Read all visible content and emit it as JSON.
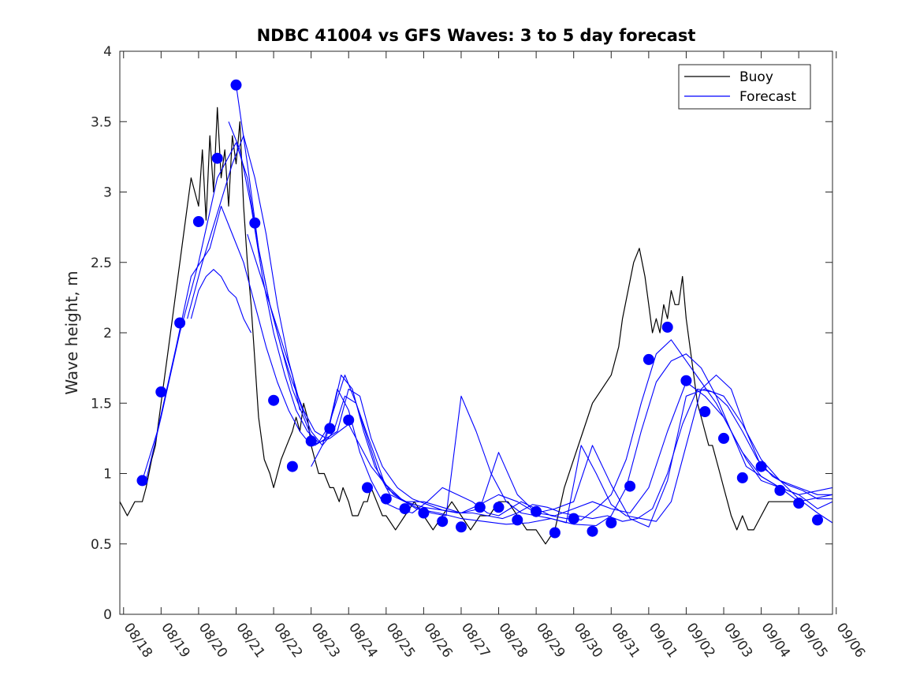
{
  "chart_data": {
    "type": "line",
    "title": "NDBC 41004 vs GFS Waves: 3 to 5 day forecast",
    "xlabel": "",
    "ylabel": "Wave height, m",
    "xlim": [
      -0.1,
      18.9
    ],
    "ylim": [
      0,
      4
    ],
    "x_tick_labels": [
      "08/18",
      "08/19",
      "08/20",
      "08/21",
      "08/22",
      "08/23",
      "08/24",
      "08/25",
      "08/26",
      "08/27",
      "08/28",
      "08/29",
      "08/30",
      "08/31",
      "09/01",
      "09/02",
      "09/03",
      "09/04",
      "09/05",
      "09/06"
    ],
    "y_ticks": [
      0,
      0.5,
      1,
      1.5,
      2,
      2.5,
      3,
      3.5,
      4
    ],
    "y_tick_labels": [
      "0",
      "0.5",
      "1",
      "1.5",
      "2",
      "2.5",
      "3",
      "3.5",
      "4"
    ],
    "legend": {
      "position": "top-right",
      "entries": [
        {
          "label": "Buoy",
          "color": "#000000"
        },
        {
          "label": "Forecast",
          "color": "#0000ff"
        }
      ]
    },
    "colors": {
      "buoy": "#000000",
      "forecast": "#0000ff",
      "markers": "#0000ff"
    },
    "series": [
      {
        "name": "Buoy",
        "color": "#000000",
        "x": [
          -0.1,
          0.1,
          0.3,
          0.5,
          0.6,
          0.75,
          0.85,
          1.0,
          1.2,
          1.4,
          1.6,
          1.8,
          2.0,
          2.1,
          2.2,
          2.3,
          2.4,
          2.5,
          2.6,
          2.7,
          2.8,
          2.9,
          3.0,
          3.1,
          3.2,
          3.3,
          3.4,
          3.5,
          3.6,
          3.75,
          3.9,
          4.0,
          4.1,
          4.2,
          4.35,
          4.5,
          4.6,
          4.7,
          4.8,
          4.9,
          5.0,
          5.1,
          5.2,
          5.35,
          5.5,
          5.6,
          5.75,
          5.85,
          6.0,
          6.1,
          6.25,
          6.4,
          6.5,
          6.6,
          6.75,
          6.9,
          7.0,
          7.25,
          7.5,
          7.75,
          8.0,
          8.25,
          8.5,
          8.75,
          9.0,
          9.25,
          9.5,
          9.75,
          10.0,
          10.25,
          10.5,
          10.75,
          11.0,
          11.25,
          11.5,
          11.75,
          12.0,
          12.25,
          12.5,
          12.75,
          13.0,
          13.2,
          13.3,
          13.45,
          13.6,
          13.75,
          13.9,
          14.0,
          14.1,
          14.2,
          14.3,
          14.4,
          14.5,
          14.6,
          14.7,
          14.8,
          14.9,
          15.0,
          15.1,
          15.2,
          15.3,
          15.4,
          15.5,
          15.6,
          15.7,
          15.8,
          15.9,
          16.0,
          16.1,
          16.2,
          16.35,
          16.5,
          16.65,
          16.8,
          17.0,
          17.2,
          17.4,
          17.6,
          17.8,
          18.0,
          18.1
        ],
        "y": [
          0.8,
          0.7,
          0.8,
          0.8,
          0.9,
          1.1,
          1.2,
          1.5,
          1.9,
          2.3,
          2.7,
          3.1,
          2.9,
          3.3,
          2.8,
          3.4,
          3.0,
          3.6,
          3.1,
          3.3,
          2.9,
          3.4,
          3.2,
          3.5,
          2.9,
          2.5,
          2.2,
          1.8,
          1.4,
          1.1,
          1.0,
          0.9,
          1.0,
          1.1,
          1.2,
          1.3,
          1.4,
          1.3,
          1.5,
          1.4,
          1.2,
          1.1,
          1.0,
          1.0,
          0.9,
          0.9,
          0.8,
          0.9,
          0.8,
          0.7,
          0.7,
          0.8,
          0.8,
          0.9,
          0.8,
          0.7,
          0.7,
          0.6,
          0.7,
          0.8,
          0.7,
          0.6,
          0.7,
          0.8,
          0.7,
          0.6,
          0.7,
          0.7,
          0.8,
          0.8,
          0.7,
          0.6,
          0.6,
          0.5,
          0.6,
          0.9,
          1.1,
          1.3,
          1.5,
          1.6,
          1.7,
          1.9,
          2.1,
          2.3,
          2.5,
          2.6,
          2.4,
          2.2,
          2.0,
          2.1,
          2.0,
          2.2,
          2.1,
          2.3,
          2.2,
          2.2,
          2.4,
          2.1,
          1.9,
          1.7,
          1.5,
          1.4,
          1.3,
          1.2,
          1.2,
          1.1,
          1.0,
          0.9,
          0.8,
          0.7,
          0.6,
          0.7,
          0.6,
          0.6,
          0.7,
          0.8,
          0.8,
          0.8,
          0.8,
          0.8,
          0.8
        ]
      },
      {
        "name": "Forecast",
        "color": "#0000ff",
        "x": [
          0.5,
          0.9,
          1.4,
          1.8,
          2.3,
          2.6,
          2.9,
          3.2,
          3.5,
          3.8,
          4.1,
          4.4,
          4.7,
          5.0,
          5.5,
          6.0,
          6.6,
          7.2,
          7.8,
          8.4,
          9.0,
          9.6,
          10.2,
          10.8,
          11.4,
          12.0,
          12.6,
          13.0,
          13.4,
          13.8,
          14.2,
          14.6,
          15.0,
          15.4,
          15.8,
          16.2,
          16.6,
          17.0,
          17.5,
          18.0,
          18.9
        ],
        "y": [
          0.95,
          1.3,
          1.9,
          2.4,
          2.6,
          2.9,
          2.7,
          2.5,
          2.2,
          1.9,
          1.65,
          1.45,
          1.3,
          1.2,
          1.25,
          1.35,
          1.05,
          0.85,
          0.75,
          0.72,
          0.68,
          0.66,
          0.64,
          0.65,
          0.68,
          0.64,
          0.63,
          0.7,
          0.9,
          1.3,
          1.65,
          1.8,
          1.85,
          1.75,
          1.55,
          1.3,
          1.05,
          0.98,
          0.9,
          0.8,
          0.85
        ]
      },
      {
        "name": "Forecast",
        "color": "#0000ff",
        "x": [
          0.6,
          1.0,
          1.5,
          2.0,
          2.5,
          3.0,
          3.3,
          3.6,
          3.9,
          4.2,
          4.5,
          4.8,
          5.1,
          5.4,
          5.7,
          6.0,
          6.3,
          6.6,
          6.9,
          7.3,
          7.7,
          8.1,
          8.5,
          8.9,
          9.3,
          9.7,
          10.0,
          10.3,
          10.6,
          11.0,
          11.4,
          11.8,
          12.2,
          12.6,
          13.0,
          13.4,
          13.8,
          14.2,
          14.6,
          15.0,
          15.4,
          15.8,
          16.2,
          16.6,
          17.0,
          17.5,
          18.0,
          18.9
        ],
        "y": [
          0.95,
          1.4,
          2.0,
          2.5,
          3.1,
          3.35,
          3.1,
          2.6,
          2.2,
          1.9,
          1.6,
          1.4,
          1.2,
          1.25,
          1.6,
          1.45,
          1.15,
          0.95,
          0.8,
          0.75,
          0.72,
          0.8,
          0.9,
          0.85,
          0.8,
          0.72,
          0.7,
          0.75,
          0.8,
          0.75,
          0.7,
          0.68,
          0.67,
          0.75,
          0.85,
          1.1,
          1.5,
          1.85,
          1.95,
          1.8,
          1.65,
          1.5,
          1.3,
          1.1,
          0.95,
          0.9,
          0.85,
          0.9
        ]
      },
      {
        "name": "Forecast",
        "color": "#0000ff",
        "x": [
          1.7,
          2.1,
          2.5,
          2.9,
          3.2,
          3.5,
          3.8,
          4.1,
          4.4,
          4.7,
          5.0,
          5.3,
          5.6,
          5.9,
          6.2,
          6.5,
          6.8,
          7.1,
          7.5,
          8.0,
          8.5,
          9.0,
          9.5,
          10.0,
          10.5,
          11.0,
          11.5,
          12.0,
          12.5,
          13.0,
          13.5,
          14.0,
          14.5,
          15.0,
          15.5,
          16.0,
          16.5,
          17.0,
          17.5,
          18.0,
          18.5,
          18.9
        ],
        "y": [
          2.1,
          2.5,
          2.85,
          3.2,
          3.4,
          3.1,
          2.7,
          2.2,
          1.8,
          1.5,
          1.3,
          1.2,
          1.3,
          1.55,
          1.5,
          1.25,
          1.0,
          0.85,
          0.8,
          0.76,
          0.74,
          0.72,
          0.78,
          0.85,
          0.8,
          0.72,
          0.7,
          0.75,
          0.8,
          0.75,
          0.72,
          0.9,
          1.3,
          1.65,
          1.55,
          1.4,
          1.15,
          0.98,
          0.9,
          0.85,
          0.75,
          0.8
        ]
      },
      {
        "name": "Forecast",
        "color": "#0000ff",
        "x": [
          2.8,
          3.1,
          3.4,
          3.7,
          4.0,
          4.3,
          4.6,
          4.9,
          5.2,
          5.5,
          5.8,
          6.1,
          6.4,
          6.7,
          7.0,
          7.4,
          7.8,
          8.2,
          8.6,
          9.0,
          9.4,
          9.8,
          10.2,
          10.6,
          11.0,
          11.4,
          11.8,
          12.2,
          12.6,
          13.0,
          13.4,
          13.8,
          14.2,
          14.6,
          15.0,
          15.4,
          15.8,
          16.2,
          16.6,
          17.0,
          17.5,
          18.0,
          18.5,
          18.9
        ],
        "y": [
          3.5,
          3.3,
          2.9,
          2.4,
          2.0,
          1.7,
          1.45,
          1.3,
          1.22,
          1.35,
          1.7,
          1.6,
          1.3,
          1.05,
          0.92,
          0.82,
          0.76,
          0.72,
          0.7,
          1.55,
          1.3,
          1.0,
          0.8,
          0.72,
          0.7,
          0.68,
          0.65,
          1.2,
          1.0,
          0.78,
          0.7,
          0.68,
          0.66,
          0.8,
          1.2,
          1.6,
          1.7,
          1.6,
          1.3,
          1.05,
          0.95,
          0.9,
          0.85,
          0.85
        ]
      },
      {
        "name": "Forecast",
        "color": "#0000ff",
        "x": [
          3.0,
          3.3,
          3.6,
          3.9,
          4.2,
          4.5,
          4.8,
          5.1,
          5.4,
          5.7,
          6.0,
          6.3,
          6.6,
          6.9,
          7.3,
          7.7,
          8.1,
          8.5,
          8.9,
          9.3,
          9.7,
          10.1,
          10.5,
          10.9,
          11.3,
          11.7,
          12.1,
          12.5,
          12.9,
          13.3,
          13.7,
          14.1,
          14.5,
          14.9,
          15.3,
          15.7,
          16.1,
          16.5,
          16.9,
          17.3,
          17.7,
          18.1,
          18.5,
          18.9
        ],
        "y": [
          3.76,
          3.2,
          2.6,
          2.2,
          1.9,
          1.65,
          1.45,
          1.3,
          1.25,
          1.3,
          1.6,
          1.55,
          1.25,
          1.05,
          0.9,
          0.82,
          0.78,
          0.74,
          0.72,
          0.72,
          0.7,
          0.68,
          0.72,
          0.78,
          0.76,
          0.72,
          0.7,
          0.68,
          0.7,
          0.66,
          0.68,
          0.75,
          1.0,
          1.35,
          1.6,
          1.58,
          1.48,
          1.3,
          1.1,
          0.98,
          0.92,
          0.88,
          0.82,
          0.82
        ]
      },
      {
        "name": "Forecast",
        "color": "#0000ff",
        "x": [
          3.3,
          3.6,
          3.9,
          4.2,
          4.5,
          4.7
        ],
        "y": [
          2.7,
          2.45,
          2.2,
          1.95,
          1.7,
          1.45
        ]
      },
      {
        "name": "Forecast",
        "color": "#0000ff",
        "x": [
          5.0,
          5.3,
          5.6,
          5.9,
          6.2,
          6.6,
          7.0,
          7.5,
          8.0,
          8.5,
          9.0,
          9.5,
          10.0,
          10.5,
          11.0,
          11.5,
          12.0,
          12.5,
          13.0,
          13.5,
          14.0,
          14.5,
          15.0,
          15.5,
          16.0,
          16.5,
          17.0,
          17.5,
          18.0,
          18.5,
          18.9
        ],
        "y": [
          1.05,
          1.2,
          1.45,
          1.7,
          1.5,
          1.2,
          0.9,
          0.8,
          0.8,
          0.76,
          0.72,
          0.75,
          1.15,
          0.85,
          0.72,
          0.75,
          0.8,
          1.2,
          0.92,
          0.68,
          0.62,
          0.95,
          1.55,
          1.6,
          1.55,
          1.35,
          1.1,
          0.95,
          0.82,
          0.72,
          0.65
        ]
      },
      {
        "name": "Forecast",
        "color": "#0000ff",
        "x": [
          1.8,
          2.0,
          2.2,
          2.4,
          2.6,
          2.8,
          3.0,
          3.2,
          3.4
        ],
        "y": [
          2.1,
          2.3,
          2.4,
          2.45,
          2.4,
          2.3,
          2.25,
          2.1,
          2.0
        ]
      }
    ],
    "markers": {
      "x": [
        0.5,
        1.0,
        1.5,
        2.0,
        2.5,
        3.0,
        3.5,
        4.0,
        4.5,
        5.0,
        5.5,
        6.0,
        6.5,
        7.0,
        7.5,
        8.0,
        8.5,
        9.0,
        9.5,
        10.0,
        10.5,
        11.0,
        11.5,
        12.0,
        12.5,
        13.0,
        13.5,
        14.0,
        14.5,
        15.0,
        15.5,
        16.0,
        16.5,
        17.0,
        17.5,
        18.0,
        18.5
      ],
      "y": [
        0.95,
        1.58,
        2.07,
        2.79,
        3.24,
        3.76,
        2.78,
        1.52,
        1.05,
        1.23,
        1.32,
        1.38,
        0.9,
        0.82,
        0.75,
        0.72,
        0.66,
        0.62,
        0.76,
        0.76,
        0.67,
        0.73,
        0.58,
        0.68,
        0.59,
        0.65,
        0.91,
        1.81,
        2.04,
        1.66,
        1.44,
        1.25,
        0.97,
        1.05,
        0.88,
        0.79,
        0.67
      ]
    }
  }
}
